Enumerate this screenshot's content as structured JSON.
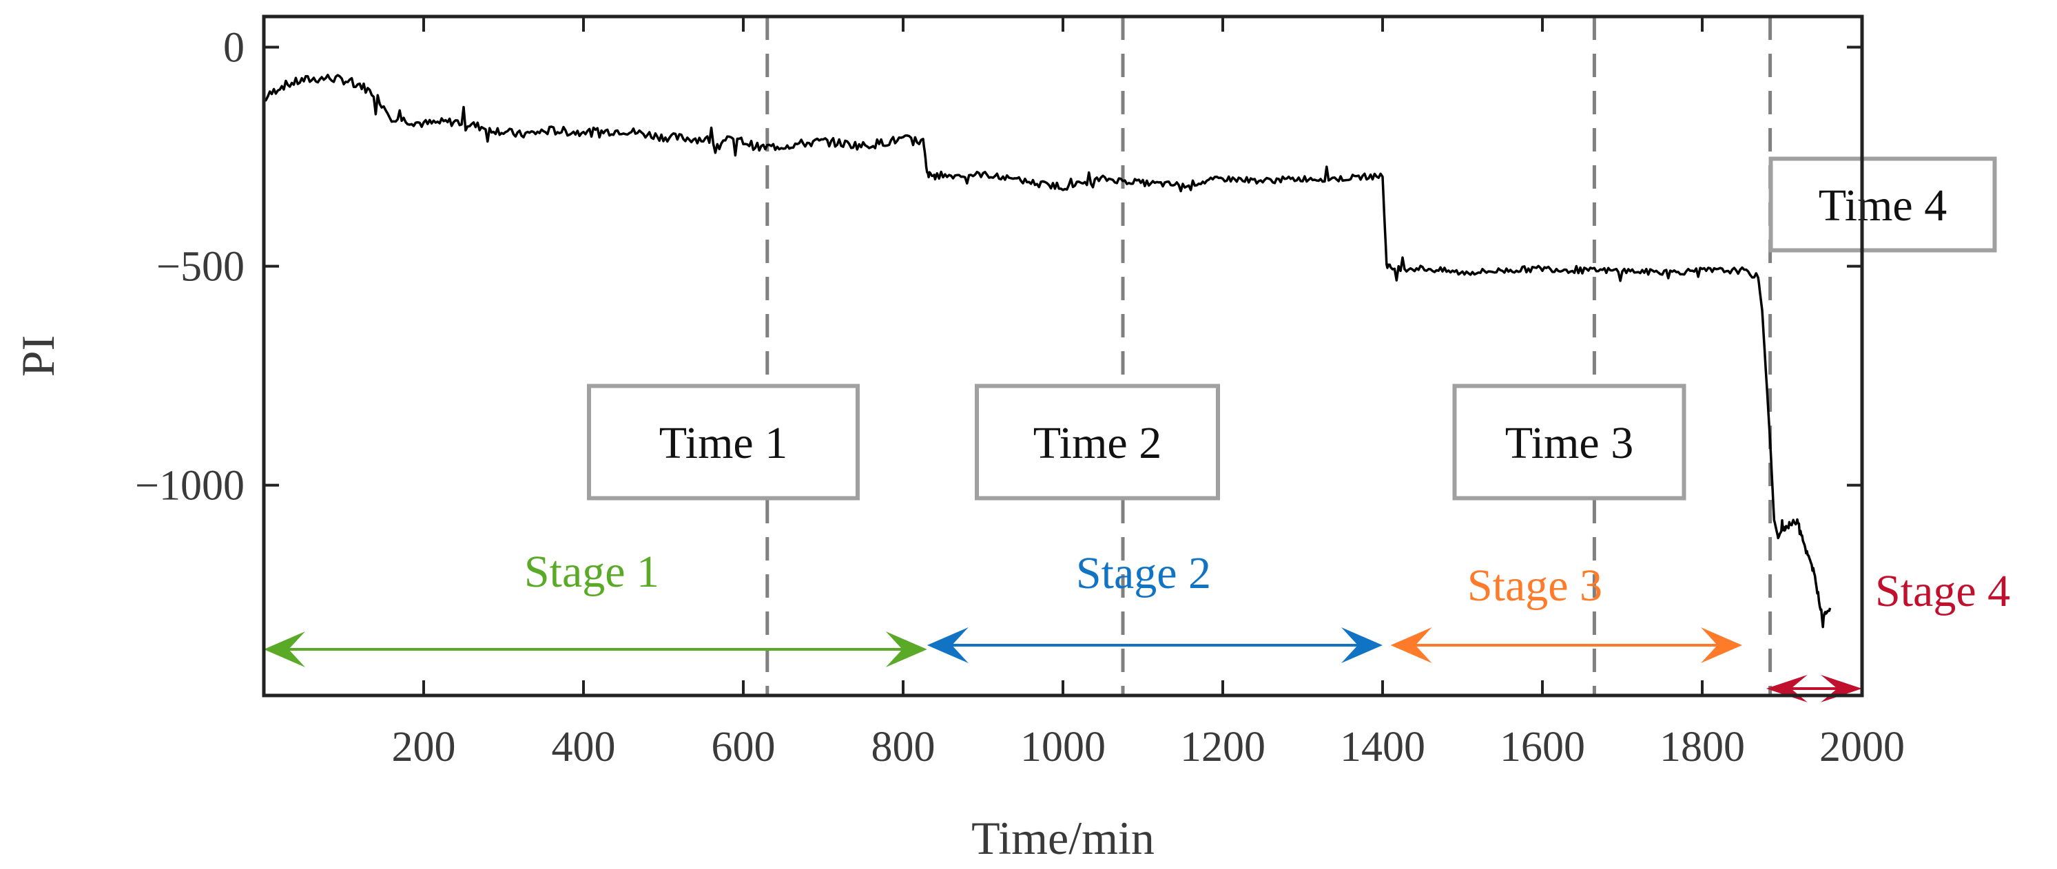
{
  "chart_data": {
    "type": "line",
    "title": "",
    "xlabel": "Time/min",
    "ylabel": "PI",
    "xlim": [
      0,
      2000
    ],
    "ylim": [
      -1480,
      70
    ],
    "x_ticks": [
      200,
      400,
      600,
      800,
      1000,
      1200,
      1400,
      1600,
      1800,
      2000
    ],
    "y_ticks": [
      0,
      -500,
      -1000
    ],
    "y_tick_labels": [
      "0",
      "−500",
      "−1000"
    ],
    "series": [
      {
        "name": "PI",
        "color": "#000000",
        "x": [
          0,
          20,
          50,
          80,
          100,
          120,
          140,
          160,
          200,
          240,
          280,
          320,
          360,
          400,
          450,
          500,
          550,
          600,
          620,
          650,
          700,
          750,
          800,
          825,
          830,
          840,
          900,
          950,
          1000,
          1050,
          1100,
          1150,
          1200,
          1250,
          1300,
          1350,
          1380,
          1400,
          1405,
          1410,
          1450,
          1500,
          1550,
          1600,
          1650,
          1700,
          1750,
          1800,
          1850,
          1870,
          1875,
          1880,
          1885,
          1890,
          1895,
          1900,
          1910,
          1920,
          1930,
          1940,
          1950,
          1960
        ],
        "values": [
          -120,
          -90,
          -75,
          -70,
          -75,
          -85,
          -110,
          -160,
          -175,
          -170,
          -185,
          -200,
          -190,
          -195,
          -190,
          -205,
          -210,
          -215,
          -230,
          -225,
          -215,
          -225,
          -210,
          -215,
          -290,
          -295,
          -290,
          -305,
          -320,
          -300,
          -310,
          -315,
          -300,
          -305,
          -300,
          -300,
          -295,
          -295,
          -495,
          -505,
          -505,
          -515,
          -510,
          -505,
          -510,
          -510,
          -515,
          -510,
          -510,
          -525,
          -600,
          -750,
          -900,
          -1080,
          -1120,
          -1100,
          -1090,
          -1080,
          -1150,
          -1200,
          -1300,
          -1280
        ]
      }
    ],
    "vertical_lines": [
      {
        "x": 630,
        "label": "Time 1"
      },
      {
        "x": 1075,
        "label": "Time 2"
      },
      {
        "x": 1665,
        "label": "Time 3"
      },
      {
        "x": 1885,
        "label": "Time 4"
      }
    ],
    "stage_labels": [
      {
        "label": "Stage 1",
        "x_start": 0,
        "x_end": 830,
        "color": "#5aaa28"
      },
      {
        "label": "Stage 2",
        "x_start": 830,
        "x_end": 1400,
        "color": "#1173c3"
      },
      {
        "label": "Stage 3",
        "x_start": 1410,
        "x_end": 1850,
        "color": "#ff7a29"
      },
      {
        "label": "Stage 4",
        "x_start": 1880,
        "x_end": 2000,
        "color": "#c0102e"
      }
    ]
  }
}
